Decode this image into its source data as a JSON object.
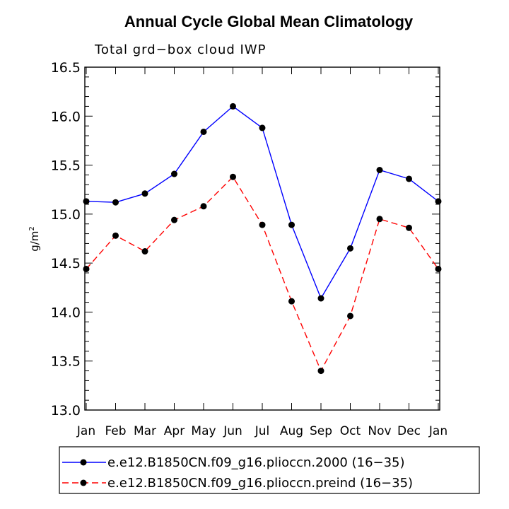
{
  "chart_data": {
    "type": "line",
    "title": "Annual Cycle Global Mean Climatology",
    "subtitle": "Total grd−box cloud IWP",
    "xlabel": "",
    "ylabel": "g/m",
    "ylabel_sup": "2",
    "categories": [
      "Jan",
      "Feb",
      "Mar",
      "Apr",
      "May",
      "Jun",
      "Jul",
      "Aug",
      "Sep",
      "Oct",
      "Nov",
      "Dec",
      "Jan"
    ],
    "ylim": [
      13.0,
      16.5
    ],
    "yticks": [
      "13.0",
      "13.5",
      "14.0",
      "14.5",
      "15.0",
      "15.5",
      "16.0",
      "16.5"
    ],
    "series": [
      {
        "name": "e.e12.B1850CN.f09_g16.plioccn.2000 (16−35)",
        "color": "#0000ff",
        "style": "solid",
        "values": [
          15.13,
          15.12,
          15.21,
          15.41,
          15.84,
          16.1,
          15.88,
          14.89,
          14.14,
          14.65,
          15.45,
          15.36,
          15.13
        ]
      },
      {
        "name": "e.e12.B1850CN.f09_g16.plioccn.preind (16−35)",
        "color": "#ff0000",
        "style": "dashed",
        "values": [
          14.44,
          14.78,
          14.62,
          14.94,
          15.08,
          15.38,
          14.89,
          14.11,
          13.4,
          13.96,
          14.95,
          14.86,
          14.44
        ]
      }
    ],
    "legend_position": "bottom"
  }
}
